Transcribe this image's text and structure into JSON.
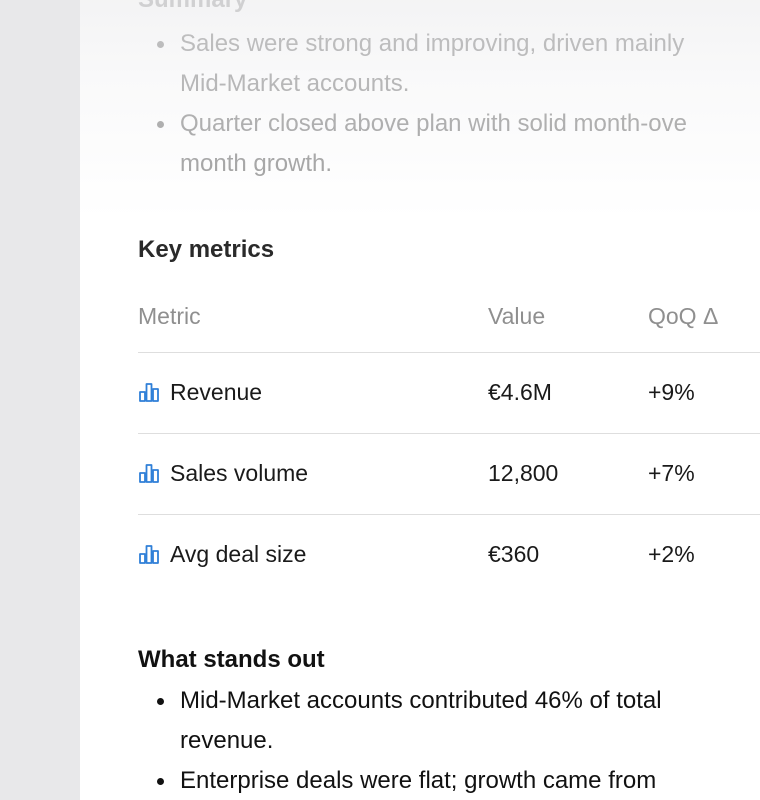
{
  "summary": {
    "heading": "Summary",
    "items": [
      [
        "Sales were strong and improving, driven mainly",
        "Mid-Market accounts."
      ],
      [
        "Quarter closed above plan with solid month-ove",
        "month growth."
      ]
    ]
  },
  "key_metrics": {
    "heading": "Key metrics",
    "columns": [
      "Metric",
      "Value",
      "QoQ Δ"
    ],
    "rows": [
      {
        "metric": "Revenue",
        "value": "€4.6M",
        "qoq": "+9%"
      },
      {
        "metric": "Sales volume",
        "value": "12,800",
        "qoq": "+7%"
      },
      {
        "metric": "Avg deal size",
        "value": "€360",
        "qoq": "+2%"
      }
    ]
  },
  "stands_out": {
    "heading": "What stands out",
    "items": [
      [
        "Mid-Market accounts contributed 46% of total",
        "revenue."
      ],
      [
        "Enterprise deals were flat; growth came from"
      ]
    ]
  },
  "icons": {
    "metric_link": "bar-chart-icon"
  },
  "colors": {
    "link": "#2f7fd8",
    "muted_text": "#9c9c9c",
    "divider": "#dedede"
  }
}
